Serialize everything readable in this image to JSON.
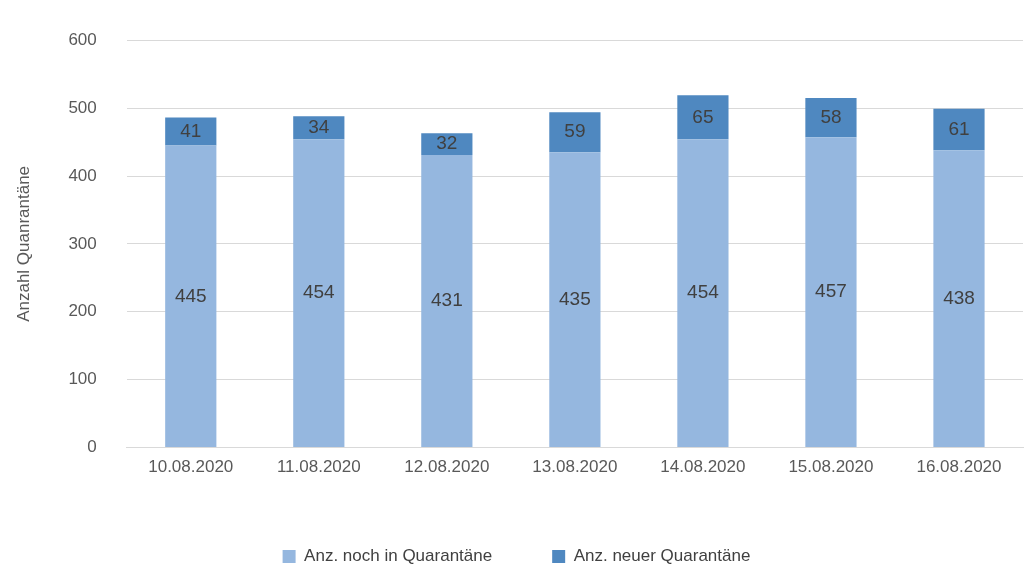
{
  "chart_data": {
    "type": "bar",
    "stacked": true,
    "ylabel": "Anzahl Quanrantäne",
    "categories": [
      "10.08.2020",
      "11.08.2020",
      "12.08.2020",
      "13.08.2020",
      "14.08.2020",
      "15.08.2020",
      "16.08.2020"
    ],
    "series": [
      {
        "name": "Anz. noch in Quarantäne",
        "color": "#95b7df",
        "values": [
          445,
          454,
          431,
          435,
          454,
          457,
          438
        ]
      },
      {
        "name": "Anz. neuer Quarantäne",
        "color": "#4f88c0",
        "values": [
          41,
          34,
          32,
          59,
          65,
          58,
          61
        ]
      }
    ],
    "ylim": [
      0,
      600
    ],
    "yticks": [
      0,
      100,
      200,
      300,
      400,
      500,
      600
    ],
    "grid": "y",
    "legend": "bottom",
    "data_labels": true
  }
}
